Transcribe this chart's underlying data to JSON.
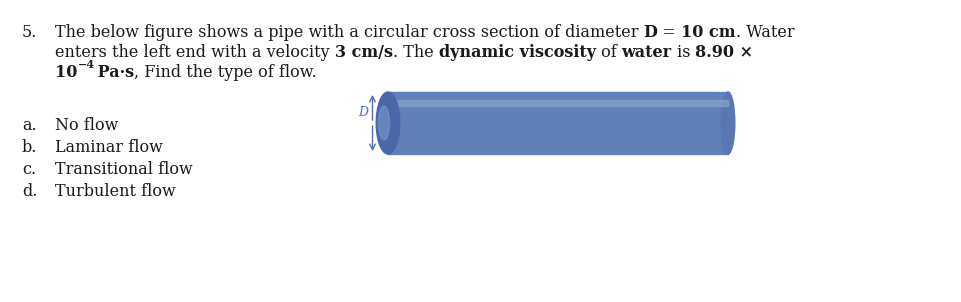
{
  "bg_color": "#ffffff",
  "text_color": "#1a1a1a",
  "pipe_body_color": "#6080b8",
  "pipe_ellipse_color": "#4a68a8",
  "pipe_cap_color": "#5878b0",
  "pipe_highlight_color": "#8aaad0",
  "pipe_shadow_color": "#3a5898",
  "arrow_color": "#5070b0",
  "D_label_color": "#5070b0",
  "font_size": 11.5,
  "font_size_small": 8.5,
  "number_label": "5.",
  "line1_normal": "The below figure shows a pipe with a circular cross section of diameter ",
  "line1_bold": "D = 10 cm",
  "line1_end": ". Water",
  "line2_start": "enters the left end with a velocity ",
  "line2_bold1": "3 cm/s",
  "line2_mid1": ". The ",
  "line2_bold2": "dynamic viscosity",
  "line2_mid2": " of ",
  "line2_bold3": "water",
  "line2_mid3": " is ",
  "line2_bold4": "8.90 ×",
  "line3_bold1": "10",
  "line3_sup": "−4",
  "line3_bold2": " Pa·s",
  "line3_end": ", Find the type of flow.",
  "options": [
    [
      "a.",
      "No flow"
    ],
    [
      "b.",
      "Laminar flow"
    ],
    [
      "c.",
      "Transitional flow"
    ],
    [
      "d.",
      "Turbulent flow"
    ]
  ]
}
